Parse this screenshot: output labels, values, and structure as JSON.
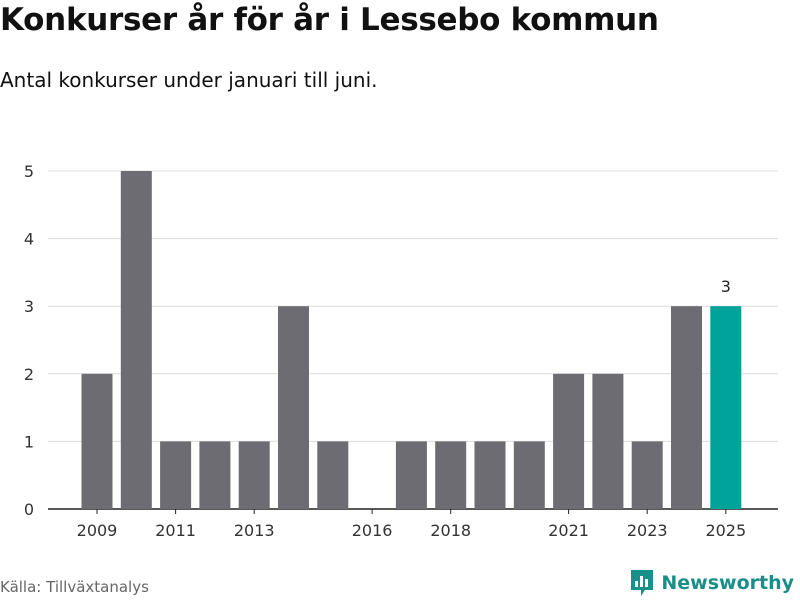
{
  "header": {
    "title": "Konkurser år för år i Lessebo kommun",
    "subtitle": "Antal konkurser under januari till juni."
  },
  "footer": {
    "source": "Källa: Tillväxtanalys",
    "brand": "Newsworthy",
    "brand_icon": "newsworthy-logo-icon",
    "brand_color": "#1a8f8a"
  },
  "chart_data": {
    "type": "bar",
    "title": "Konkurser år för år i Lessebo kommun",
    "subtitle": "Antal konkurser under januari till juni.",
    "categories": [
      "2009",
      "2010",
      "2011",
      "2012",
      "2013",
      "2014",
      "2015",
      "2016",
      "2017",
      "2018",
      "2019",
      "2020",
      "2021",
      "2022",
      "2023",
      "2024",
      "2025"
    ],
    "values": [
      2,
      5,
      1,
      1,
      1,
      3,
      1,
      0,
      1,
      1,
      1,
      1,
      2,
      2,
      1,
      3,
      3
    ],
    "x_tick_labels": [
      "2009",
      "2011",
      "2013",
      "2016",
      "2018",
      "2021",
      "2023",
      "2025"
    ],
    "y_ticks": [
      0,
      1,
      2,
      3,
      4,
      5
    ],
    "ylim": [
      0,
      5
    ],
    "xlabel": "",
    "ylabel": "",
    "grid": "horizontal",
    "bar_color": "#6d6c72",
    "highlight_color": "#00a39a",
    "highlight_category": "2025",
    "data_labels": [
      {
        "category": "2025",
        "text": "3"
      }
    ]
  }
}
